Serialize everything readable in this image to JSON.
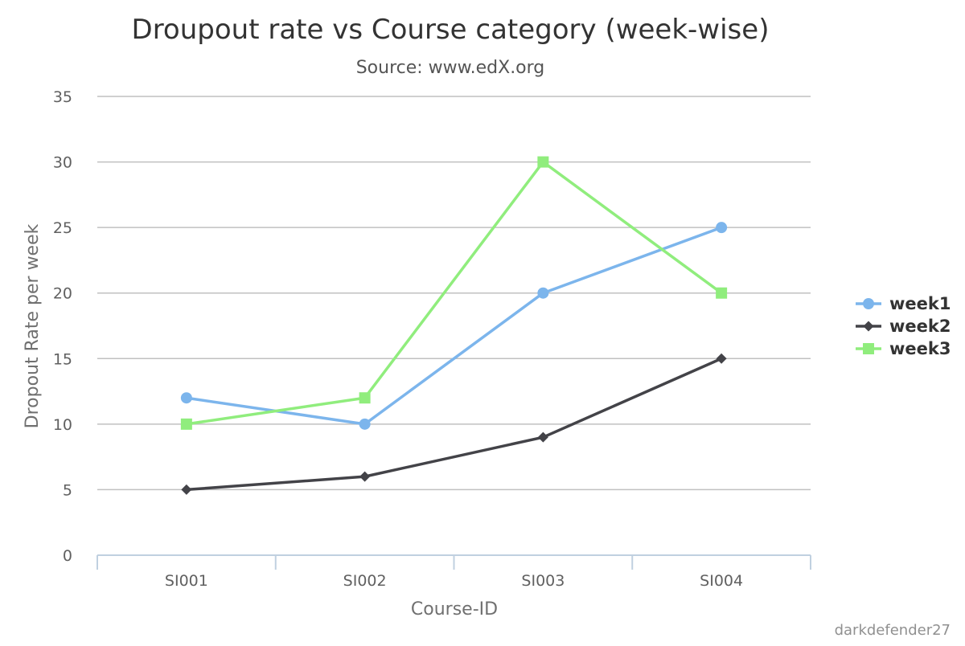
{
  "chart_data": {
    "type": "line",
    "title": "Droupout rate vs Course category (week-wise)",
    "subtitle": "Source: www.edX.org",
    "xlabel": "Course-ID",
    "ylabel": "Dropout Rate per week",
    "categories": [
      "SI001",
      "SI002",
      "SI003",
      "SI004"
    ],
    "ylim": [
      0,
      35
    ],
    "yticks": [
      0,
      5,
      10,
      15,
      20,
      25,
      30,
      35
    ],
    "grid": true,
    "legend_placement": "right",
    "series": [
      {
        "name": "week1",
        "values": [
          12,
          10,
          20,
          25
        ],
        "color": "#7cb5ec",
        "marker": "circle"
      },
      {
        "name": "week2",
        "values": [
          5,
          6,
          9,
          15
        ],
        "color": "#434348",
        "marker": "diamond"
      },
      {
        "name": "week3",
        "values": [
          10,
          12,
          30,
          20
        ],
        "color": "#90ed7d",
        "marker": "square"
      }
    ],
    "credit": "darkdefender27"
  }
}
